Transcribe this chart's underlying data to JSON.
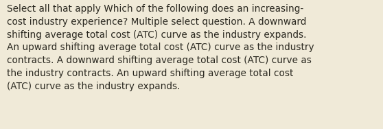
{
  "lines": [
    "Select all that apply Which of the following does an increasing-",
    "cost industry experience? Multiple select question. A downward",
    "shifting average total cost (ATC) curve as the industry expands.",
    "An upward shifting average total cost (ATC) curve as the industry",
    "contracts. A downward shifting average total cost (ATC) curve as",
    "the industry contracts. An upward shifting average total cost",
    "(ATC) curve as the industry expands."
  ],
  "background_color": "#f0ead8",
  "text_color": "#2a2820",
  "font_size": 9.8,
  "fig_width": 5.58,
  "fig_height": 1.88,
  "dpi": 100
}
